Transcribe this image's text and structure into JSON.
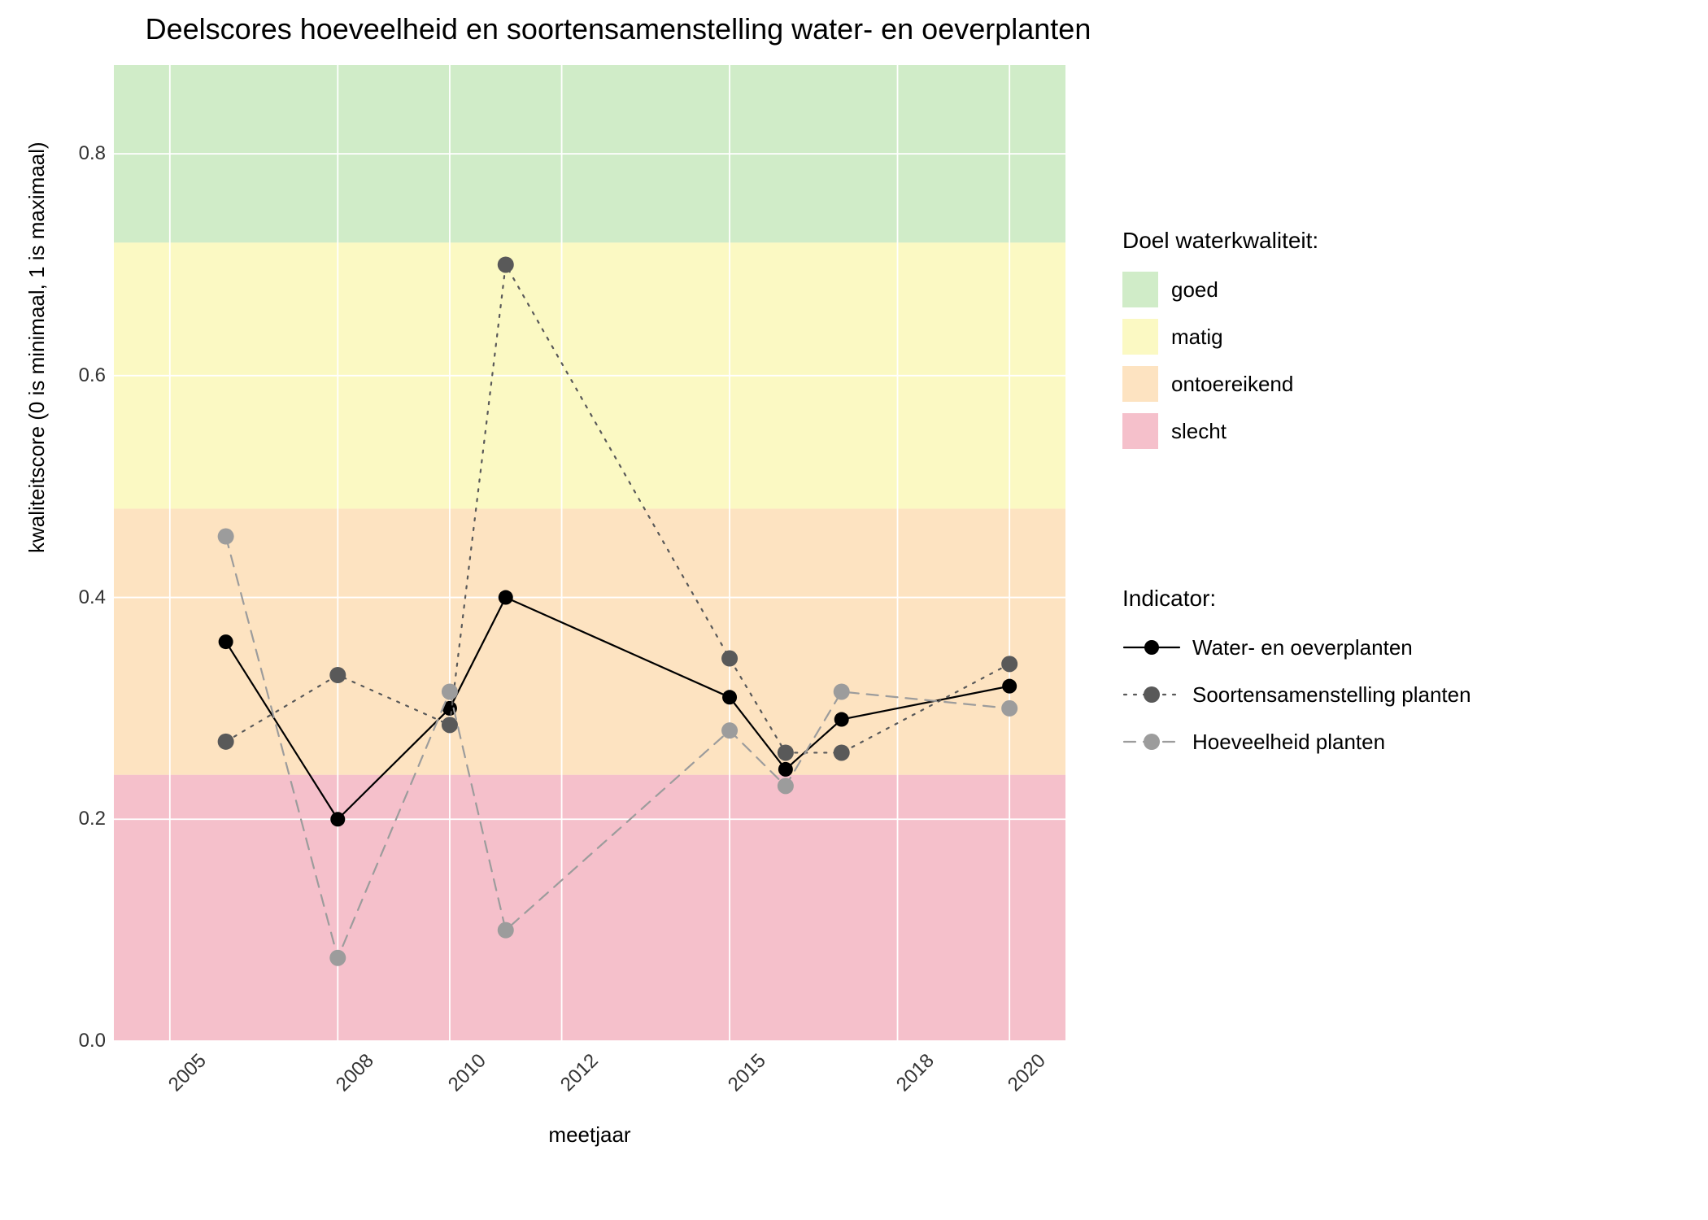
{
  "title": "Deelscores hoeveelheid en soortensamenstelling water- en oeverplanten",
  "xlabel": "meetjaar",
  "ylabel": "kwaliteitscore (0 is minimaal, 1 is maximaal)",
  "chart": {
    "type": "line",
    "xlim": [
      2004,
      2021
    ],
    "ylim": [
      0.0,
      0.88
    ],
    "yticks": [
      0.0,
      0.2,
      0.4,
      0.6,
      0.8
    ],
    "xticks": [
      2005,
      2008,
      2010,
      2012,
      2015,
      2018,
      2020
    ],
    "background": "#ebebeb",
    "grid_color": "#ffffff",
    "bands": [
      {
        "key": "slecht",
        "from": 0.0,
        "to": 0.24,
        "color": "#f5c0cb"
      },
      {
        "key": "ontoereikend",
        "from": 0.24,
        "to": 0.48,
        "color": "#fde3c1"
      },
      {
        "key": "matig",
        "from": 0.48,
        "to": 0.72,
        "color": "#fbf9c3"
      },
      {
        "key": "goed",
        "from": 0.72,
        "to": 0.88,
        "color": "#d0ecc8"
      }
    ],
    "band_legend_title": "Doel waterkwaliteit:",
    "band_legend_order": [
      "goed",
      "matig",
      "ontoereikend",
      "slecht"
    ],
    "band_labels": {
      "goed": "goed",
      "matig": "matig",
      "ontoereikend": "ontoereikend",
      "slecht": "slecht"
    },
    "series_legend_title": "Indicator:",
    "series": [
      {
        "key": "water_oever",
        "label": "Water- en oeverplanten",
        "color": "#000000",
        "marker_color": "#000000",
        "line_style": "solid",
        "line_width": 2.2,
        "marker_size": 9,
        "x": [
          2006,
          2008,
          2010,
          2011,
          2015,
          2016,
          2017,
          2020
        ],
        "y": [
          0.36,
          0.2,
          0.3,
          0.4,
          0.31,
          0.245,
          0.29,
          0.32
        ]
      },
      {
        "key": "soorten",
        "label": "Soortensamenstelling planten",
        "color": "#595959",
        "marker_color": "#595959",
        "line_style": "dotted",
        "line_width": 2.2,
        "marker_size": 10,
        "x": [
          2006,
          2008,
          2010,
          2011,
          2015,
          2016,
          2017,
          2020
        ],
        "y": [
          0.27,
          0.33,
          0.285,
          0.7,
          0.345,
          0.26,
          0.26,
          0.34
        ]
      },
      {
        "key": "hoeveelheid",
        "label": "Hoeveelheid planten",
        "color": "#9c9c9c",
        "marker_color": "#9c9c9c",
        "line_style": "dashed",
        "line_width": 2.2,
        "marker_size": 10,
        "x": [
          2006,
          2008,
          2010,
          2011,
          2015,
          2016,
          2017,
          2020
        ],
        "y": [
          0.455,
          0.075,
          0.315,
          0.1,
          0.28,
          0.23,
          0.315,
          0.3
        ]
      }
    ]
  },
  "title_fontsize": 36,
  "label_fontsize": 26,
  "tick_fontsize": 24,
  "legend_fontsize": 26
}
